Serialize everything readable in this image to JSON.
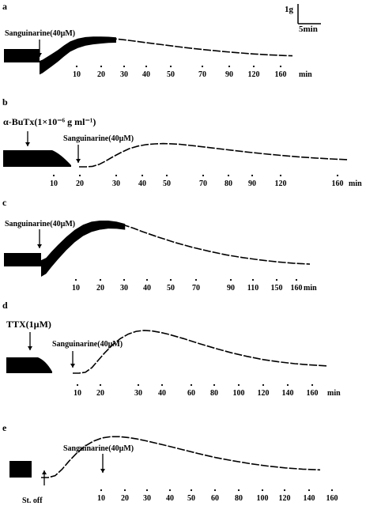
{
  "scale_bar": {
    "force": "1g",
    "time": "5min"
  },
  "time_unit": "min",
  "chart_data": [
    {
      "type": "line",
      "panel": "a",
      "annotations": [
        {
          "text": "Sanguinarine(40µM)",
          "time": 0
        }
      ],
      "tick_labels": [
        "10",
        "20",
        "30",
        "40",
        "50",
        "70",
        "90",
        "120",
        "160"
      ],
      "trace": {
        "time_min": [
          0,
          2,
          5,
          8,
          12,
          16,
          20,
          25,
          30,
          35,
          40,
          45,
          50,
          55,
          60,
          70,
          80,
          90,
          100,
          110,
          120,
          130,
          140,
          150,
          160,
          165
        ],
        "tension_g": [
          0,
          0.1,
          0.35,
          0.6,
          0.95,
          1.35,
          1.7,
          1.95,
          2.08,
          2.12,
          2.12,
          2.1,
          2.05,
          1.98,
          1.9,
          1.72,
          1.55,
          1.38,
          1.22,
          1.08,
          0.95,
          0.84,
          0.74,
          0.66,
          0.6,
          0.58
        ]
      }
    },
    {
      "type": "line",
      "panel": "b",
      "annotations": [
        {
          "text": "α-BuTx(1×10⁻⁶ g ml⁻¹)",
          "time": -18
        },
        {
          "text": "Sanguinarine(40µM)",
          "time": 0
        }
      ],
      "tick_labels": [
        "10",
        "20",
        "30",
        "40",
        "50",
        "70",
        "80",
        "90",
        "120",
        "160"
      ],
      "trace": {
        "time_min": [
          0,
          4,
          8,
          12,
          16,
          20,
          25,
          30,
          35,
          40,
          45,
          50,
          55,
          60,
          70,
          80,
          90,
          100,
          110,
          120,
          130,
          140,
          150,
          160
        ],
        "tension_g": [
          0,
          0,
          0.05,
          0.25,
          0.6,
          1.0,
          1.45,
          1.85,
          2.1,
          2.25,
          2.32,
          2.35,
          2.33,
          2.28,
          2.1,
          1.9,
          1.7,
          1.5,
          1.32,
          1.16,
          1.02,
          0.9,
          0.8,
          0.72
        ]
      }
    },
    {
      "type": "line",
      "panel": "c",
      "annotations": [
        {
          "text": "Sanguinarine(40µM)",
          "time": 0
        }
      ],
      "tick_labels": [
        "10",
        "20",
        "30",
        "40",
        "50",
        "70",
        "90",
        "110",
        "150",
        "160"
      ],
      "trace": {
        "time_min": [
          0,
          3,
          6,
          10,
          15,
          20,
          25,
          30,
          35,
          40,
          45,
          50,
          55,
          60,
          70,
          80,
          90,
          100,
          110,
          120,
          130,
          140,
          150,
          160
        ],
        "tension_g": [
          0.2,
          0.3,
          0.55,
          0.85,
          1.2,
          1.5,
          1.72,
          1.85,
          1.9,
          1.9,
          1.85,
          1.76,
          1.64,
          1.5,
          1.25,
          1.02,
          0.82,
          0.65,
          0.5,
          0.38,
          0.28,
          0.2,
          0.14,
          0.1
        ]
      }
    },
    {
      "type": "line",
      "panel": "d",
      "annotations": [
        {
          "text": "TTX(1µM)",
          "time": -18
        },
        {
          "text": "Sanguinarine(40µM)",
          "time": 0
        }
      ],
      "tick_labels": [
        "10",
        "20",
        "30",
        "40",
        "60",
        "80",
        "100",
        "120",
        "140",
        "160"
      ],
      "trace": {
        "time_min": [
          0,
          4,
          8,
          12,
          16,
          20,
          25,
          30,
          35,
          40,
          45,
          50,
          55,
          60,
          70,
          80,
          90,
          100,
          110,
          120,
          130,
          140,
          150,
          160
        ],
        "tension_g": [
          0,
          0,
          0.05,
          0.3,
          0.7,
          1.1,
          1.55,
          1.9,
          2.15,
          2.3,
          2.35,
          2.32,
          2.25,
          2.15,
          1.9,
          1.62,
          1.36,
          1.12,
          0.92,
          0.75,
          0.62,
          0.52,
          0.45,
          0.4
        ]
      }
    },
    {
      "type": "line",
      "panel": "e",
      "annotations": [
        {
          "text": "Sanguinarine(40µM)",
          "time": 0
        },
        {
          "text": "St. off",
          "time": -10
        }
      ],
      "tick_labels": [
        "10",
        "20",
        "30",
        "40",
        "50",
        "60",
        "80",
        "100",
        "120",
        "140",
        "160"
      ],
      "trace": {
        "time_min": [
          0,
          4,
          8,
          12,
          16,
          20,
          25,
          30,
          35,
          40,
          45,
          50,
          55,
          60,
          70,
          80,
          90,
          100,
          110,
          120,
          130,
          140,
          150,
          160
        ],
        "tension_g": [
          0,
          0,
          0.1,
          0.45,
          0.9,
          1.3,
          1.72,
          2.0,
          2.18,
          2.25,
          2.25,
          2.2,
          2.12,
          2.02,
          1.8,
          1.56,
          1.32,
          1.1,
          0.92,
          0.76,
          0.63,
          0.53,
          0.46,
          0.42
        ]
      }
    }
  ]
}
